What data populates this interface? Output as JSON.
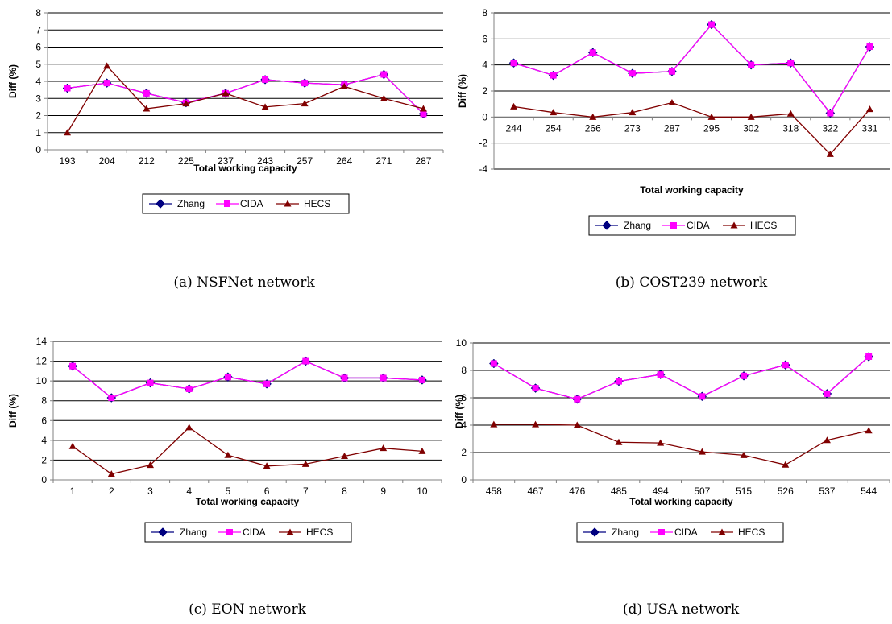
{
  "colors": {
    "zhang": "#000080",
    "cida": "#FF00FF",
    "hecs": "#800000",
    "grid": "#000000",
    "axis": "#808080"
  },
  "chart_data": [
    {
      "type": "line",
      "caption": "(a) NSFNet network",
      "categories": [
        "193",
        "204",
        "212",
        "225",
        "237",
        "243",
        "257",
        "264",
        "271",
        "287"
      ],
      "xlabel": "Total working capacity",
      "ylabel": "Diff (%)",
      "ylim": [
        0,
        8
      ],
      "yticks": [
        "0",
        "1",
        "2",
        "3",
        "4",
        "5",
        "6",
        "7",
        "8"
      ],
      "grid": true,
      "legend_position": "bottom",
      "series": [
        {
          "name": "Zhang",
          "values": [
            3.6,
            3.9,
            3.3,
            2.75,
            3.3,
            4.1,
            3.9,
            3.8,
            4.4,
            2.1
          ]
        },
        {
          "name": "CIDA",
          "values": [
            3.6,
            3.9,
            3.3,
            2.75,
            3.3,
            4.1,
            3.9,
            3.8,
            4.4,
            2.1
          ]
        },
        {
          "name": "HECS",
          "values": [
            1.0,
            4.9,
            2.4,
            2.7,
            3.3,
            2.5,
            2.7,
            3.7,
            3.0,
            2.4
          ]
        }
      ]
    },
    {
      "type": "line",
      "caption": "(b) COST239 network",
      "categories": [
        "244",
        "254",
        "266",
        "273",
        "287",
        "295",
        "302",
        "318",
        "322",
        "331"
      ],
      "xlabel": "Total working capacity",
      "ylabel": "Diff (%)",
      "ylim": [
        -4,
        8
      ],
      "yticks": [
        "-4",
        "-2",
        "0",
        "2",
        "4",
        "6",
        "8"
      ],
      "grid": true,
      "legend_position": "bottom",
      "series": [
        {
          "name": "Zhang",
          "values": [
            4.15,
            3.2,
            4.95,
            3.35,
            3.5,
            7.1,
            4.0,
            4.15,
            0.3,
            5.4
          ]
        },
        {
          "name": "CIDA",
          "values": [
            4.15,
            3.2,
            4.95,
            3.35,
            3.5,
            7.1,
            4.0,
            4.15,
            0.3,
            5.4
          ]
        },
        {
          "name": "HECS",
          "values": [
            0.8,
            0.35,
            0.0,
            0.35,
            1.1,
            0.0,
            0.0,
            0.25,
            -2.85,
            0.6
          ]
        }
      ]
    },
    {
      "type": "line",
      "caption": "(c) EON network",
      "categories": [
        "1",
        "2",
        "3",
        "4",
        "5",
        "6",
        "7",
        "8",
        "9",
        "10"
      ],
      "xlabel": "Total working capacity",
      "ylabel": "Diff (%)",
      "ylim": [
        0,
        14
      ],
      "yticks": [
        "0",
        "2",
        "4",
        "6",
        "8",
        "10",
        "12",
        "14"
      ],
      "grid": true,
      "legend_position": "bottom",
      "series": [
        {
          "name": "Zhang",
          "values": [
            11.5,
            8.3,
            9.8,
            9.2,
            10.4,
            9.7,
            12.0,
            10.3,
            10.3,
            10.1
          ]
        },
        {
          "name": "CIDA",
          "values": [
            11.5,
            8.3,
            9.8,
            9.2,
            10.4,
            9.7,
            12.0,
            10.3,
            10.3,
            10.1
          ]
        },
        {
          "name": "HECS",
          "values": [
            3.4,
            0.6,
            1.5,
            5.3,
            2.5,
            1.4,
            1.6,
            2.4,
            3.2,
            2.9
          ]
        }
      ]
    },
    {
      "type": "line",
      "caption": "(d) USA network",
      "categories": [
        "458",
        "467",
        "476",
        "485",
        "494",
        "507",
        "515",
        "526",
        "537",
        "544"
      ],
      "xlabel": "Total working capacity",
      "ylabel": "Diff (%)",
      "ylim": [
        0,
        10
      ],
      "yticks": [
        "0",
        "2",
        "4",
        "6",
        "8",
        "10"
      ],
      "grid": true,
      "legend_position": "bottom",
      "series": [
        {
          "name": "Zhang",
          "values": [
            8.5,
            6.7,
            5.9,
            7.2,
            7.7,
            6.1,
            7.6,
            8.4,
            6.3,
            9.0
          ]
        },
        {
          "name": "CIDA",
          "values": [
            8.5,
            6.7,
            5.9,
            7.2,
            7.7,
            6.1,
            7.6,
            8.4,
            6.3,
            9.0
          ]
        },
        {
          "name": "HECS",
          "values": [
            4.05,
            4.05,
            4.0,
            2.75,
            2.7,
            2.05,
            1.8,
            1.1,
            2.9,
            3.6
          ]
        }
      ]
    }
  ]
}
